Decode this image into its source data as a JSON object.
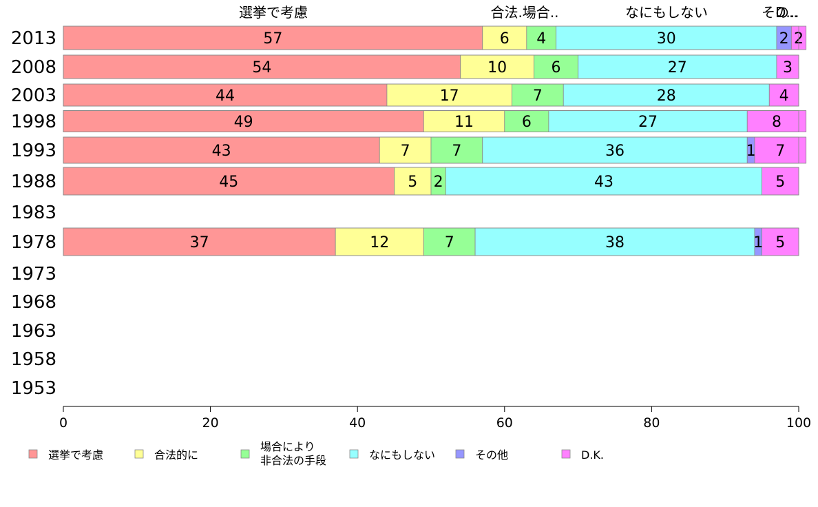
{
  "chart_data": {
    "type": "bar",
    "orientation": "horizontal",
    "stacked": true,
    "categories": [
      "2013",
      "2008",
      "2003",
      "1998",
      "1993",
      "1988",
      "1983",
      "1978",
      "1973",
      "1968",
      "1963",
      "1958",
      "1953"
    ],
    "series": [
      {
        "name": "選挙で考慮",
        "color": "#ff9696",
        "values": [
          57,
          54,
          44,
          49,
          43,
          45,
          null,
          37,
          null,
          null,
          null,
          null,
          null
        ]
      },
      {
        "name": "合法的に",
        "color": "#ffff96",
        "values": [
          6,
          10,
          17,
          11,
          7,
          5,
          null,
          12,
          null,
          null,
          null,
          null,
          null
        ]
      },
      {
        "name": "場合により\n非合法の手段",
        "color": "#96ff96",
        "values": [
          4,
          6,
          7,
          6,
          7,
          2,
          null,
          7,
          null,
          null,
          null,
          null,
          null
        ]
      },
      {
        "name": "なにもしない",
        "color": "#96ffff",
        "values": [
          30,
          27,
          28,
          27,
          36,
          43,
          null,
          38,
          null,
          null,
          null,
          null,
          null
        ]
      },
      {
        "name": "その他",
        "color": "#9696ff",
        "values": [
          2,
          0,
          0,
          0,
          1,
          0,
          null,
          1,
          null,
          null,
          null,
          null,
          null
        ]
      },
      {
        "name": "D.K.",
        "color": "#ff80ff",
        "values": [
          2,
          3,
          4,
          8,
          7,
          5,
          null,
          5,
          null,
          null,
          null,
          null,
          null
        ]
      }
    ],
    "top_labels": [
      "選挙で考慮",
      "合法.場合..",
      "なにもしない",
      "その..",
      "D..."
    ],
    "x_ticks": [
      0,
      20,
      40,
      60,
      80,
      100
    ],
    "xlim": [
      0,
      100
    ],
    "grid": false,
    "legend_position": "bottom"
  }
}
